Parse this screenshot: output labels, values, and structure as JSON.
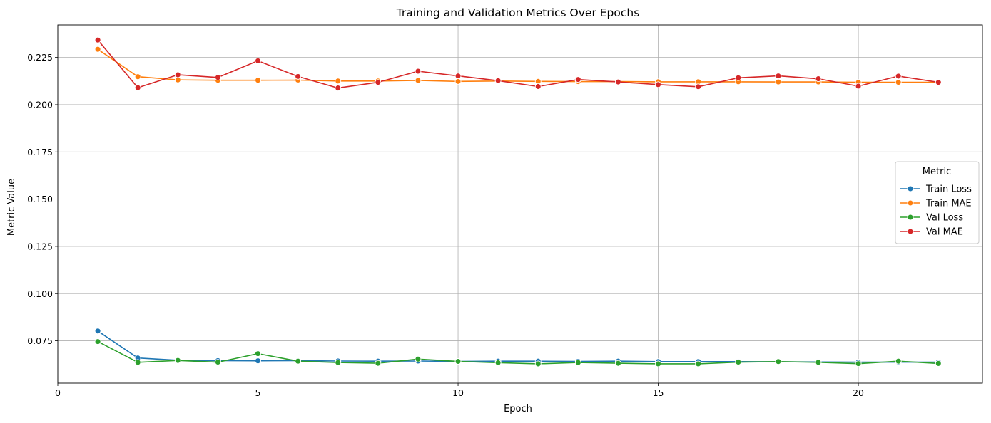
{
  "chart_data": {
    "type": "line",
    "title": "Training and Validation Metrics Over Epochs",
    "xlabel": "Epoch",
    "ylabel": "Metric Value",
    "xlim": [
      0,
      23.1
    ],
    "ylim": [
      0.0526,
      0.2422
    ],
    "xticks": [
      0,
      5,
      10,
      15,
      20
    ],
    "yticks": [
      0.075,
      0.1,
      0.125,
      0.15,
      0.175,
      0.2,
      0.225
    ],
    "ytick_labels": [
      "0.075",
      "0.100",
      "0.125",
      "0.150",
      "0.175",
      "0.200",
      "0.225"
    ],
    "grid": true,
    "legend": {
      "title": "Metric",
      "placement": "center-right"
    },
    "x": [
      1,
      2,
      3,
      4,
      5,
      6,
      7,
      8,
      9,
      10,
      11,
      12,
      13,
      14,
      15,
      16,
      17,
      18,
      19,
      20,
      21,
      22
    ],
    "series": [
      {
        "name": "Train Loss",
        "color": "#1f77b4",
        "values": [
          0.0802,
          0.0659,
          0.0647,
          0.0645,
          0.0644,
          0.0645,
          0.0643,
          0.0642,
          0.0643,
          0.0641,
          0.0642,
          0.0642,
          0.0641,
          0.0642,
          0.064,
          0.064,
          0.064,
          0.0639,
          0.0638,
          0.0637,
          0.0637,
          0.0637
        ]
      },
      {
        "name": "Train MAE",
        "color": "#ff7f0e",
        "values": [
          0.2293,
          0.2148,
          0.2131,
          0.2129,
          0.2129,
          0.213,
          0.2125,
          0.2125,
          0.2128,
          0.2123,
          0.2125,
          0.2123,
          0.2122,
          0.2122,
          0.2121,
          0.2121,
          0.2121,
          0.212,
          0.212,
          0.2118,
          0.2118,
          0.2118
        ]
      },
      {
        "name": "Val Loss",
        "color": "#2ca02c",
        "values": [
          0.0746,
          0.0636,
          0.0646,
          0.0637,
          0.0682,
          0.0642,
          0.0635,
          0.0631,
          0.0653,
          0.0641,
          0.0634,
          0.0628,
          0.0635,
          0.0631,
          0.0628,
          0.0628,
          0.0637,
          0.064,
          0.0636,
          0.0629,
          0.0642,
          0.063
        ]
      },
      {
        "name": "Val MAE",
        "color": "#d62728",
        "values": [
          0.2342,
          0.209,
          0.2158,
          0.2144,
          0.2232,
          0.2149,
          0.2088,
          0.2118,
          0.2177,
          0.2152,
          0.2127,
          0.2096,
          0.2133,
          0.212,
          0.2106,
          0.2095,
          0.2142,
          0.2152,
          0.2137,
          0.2098,
          0.2151,
          0.2118
        ]
      }
    ]
  }
}
